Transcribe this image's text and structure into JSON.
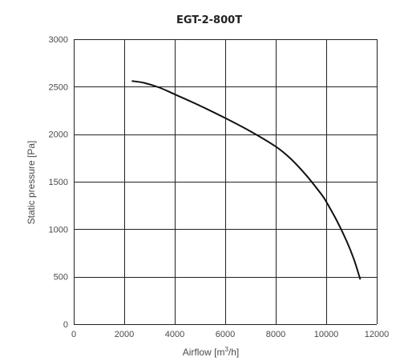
{
  "chart_data": {
    "type": "line",
    "title": "EGT-2-800T",
    "xlabel_main": "Airflow [m",
    "xlabel_sup": "3",
    "xlabel_tail": "/h]",
    "ylabel": "Static pressure [Pa]",
    "xlim": [
      0,
      12000
    ],
    "ylim": [
      0,
      3000
    ],
    "x_ticks": [
      0,
      2000,
      4000,
      6000,
      8000,
      10000,
      12000
    ],
    "y_ticks": [
      0,
      500,
      1000,
      1500,
      2000,
      2500,
      3000
    ],
    "grid": true,
    "series": [
      {
        "x": [
          2300,
          2800,
          3400,
          4000,
          5000,
          6000,
          7000,
          8000,
          8600,
          9200,
          9800,
          10000,
          10400,
          10800,
          11100,
          11350
        ],
        "y": [
          2560,
          2540,
          2490,
          2420,
          2300,
          2170,
          2030,
          1870,
          1740,
          1570,
          1370,
          1290,
          1100,
          880,
          680,
          470
        ]
      }
    ],
    "line_color": "#111111",
    "grid_color": "#222222"
  }
}
